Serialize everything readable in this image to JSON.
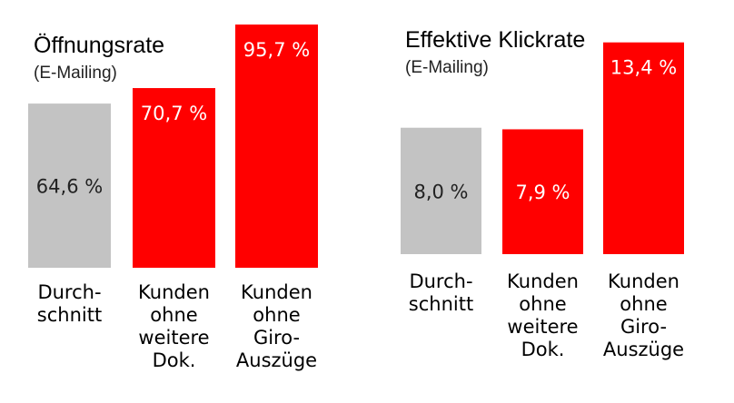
{
  "chart_data": [
    {
      "type": "bar",
      "title": "Öffnungsrate",
      "subtitle": "(E-Mailing)",
      "categories": [
        [
          "Durch-",
          "schnitt"
        ],
        [
          "Kunden",
          "ohne",
          "weitere",
          "Dok."
        ],
        [
          "Kunden",
          "ohne",
          "Giro-",
          "Auszüge"
        ]
      ],
      "values": [
        64.6,
        70.7,
        95.7
      ],
      "value_labels": [
        "64,6 %",
        "70,7 %",
        "95,7 %"
      ],
      "bar_colors": [
        "#c3c3c3",
        "#ff0000",
        "#ff0000"
      ],
      "label_colors": [
        "#222222",
        "#ffffff",
        "#ffffff"
      ],
      "ylim": [
        0,
        100
      ]
    },
    {
      "type": "bar",
      "title": "Effektive Klickrate",
      "subtitle": "(E-Mailing)",
      "categories": [
        [
          "Durch-",
          "schnitt"
        ],
        [
          "Kunden",
          "ohne",
          "weitere",
          "Dok."
        ],
        [
          "Kunden",
          "ohne",
          "Giro-",
          "Auszüge"
        ]
      ],
      "values": [
        8.0,
        7.9,
        13.4
      ],
      "value_labels": [
        "8,0 %",
        "7,9 %",
        "13,4 %"
      ],
      "bar_colors": [
        "#c3c3c3",
        "#ff0000",
        "#ff0000"
      ],
      "label_colors": [
        "#222222",
        "#ffffff",
        "#ffffff"
      ],
      "ylim": [
        0,
        13.9
      ]
    }
  ]
}
